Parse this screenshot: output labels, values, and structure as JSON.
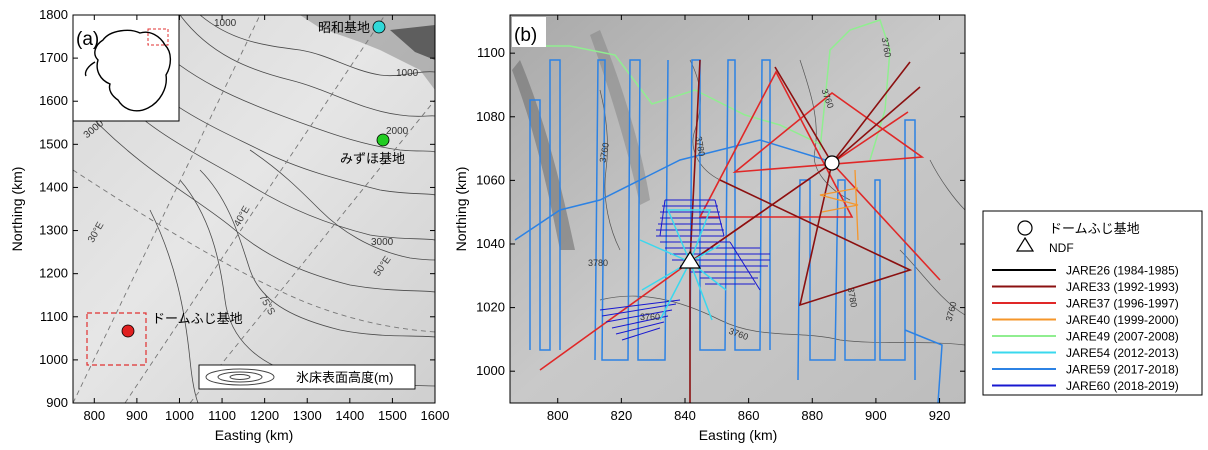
{
  "panel_a": {
    "label": "(a)",
    "xlabel": "Easting (km)",
    "ylabel": "Northing (km)",
    "xticks": [
      "800",
      "900",
      "1000",
      "1100",
      "1200",
      "1300",
      "1400",
      "1500",
      "1600"
    ],
    "yticks": [
      "900",
      "1000",
      "1100",
      "1200",
      "1300",
      "1400",
      "1500",
      "1600",
      "1700",
      "1800"
    ],
    "contour_labels": [
      "1000",
      "2000",
      "3000",
      "3000",
      "1000"
    ],
    "meridian_labels": [
      "30°E",
      "40°E",
      "50°E",
      "75°S"
    ],
    "stations": [
      {
        "name": "昭和基地",
        "color": "#30d8d8"
      },
      {
        "name": "みずほ基地",
        "color": "#22cc22"
      },
      {
        "name": "ドームふじ基地",
        "color": "#e02020"
      }
    ],
    "legend_text": "氷床表面高度(m)"
  },
  "panel_b": {
    "label": "(b)",
    "xlabel": "Easting (km)",
    "ylabel": "Northing (km)",
    "xticks": [
      "800",
      "820",
      "840",
      "860",
      "880",
      "900",
      "920"
    ],
    "yticks": [
      "1000",
      "1020",
      "1040",
      "1060",
      "1080",
      "1100"
    ],
    "contour_labels": [
      "3760",
      "3780",
      "3780",
      "3760",
      "3760",
      "3760",
      "3780",
      "3760",
      "3760"
    ]
  },
  "legend": {
    "symbols": [
      {
        "label": "ドームふじ基地",
        "icon": "circle"
      },
      {
        "label": "NDF",
        "icon": "triangle"
      }
    ],
    "entries": [
      {
        "label": "JARE26 (1984-1985)",
        "color": "#000000"
      },
      {
        "label": "JARE33 (1992-1993)",
        "color": "#8b1010"
      },
      {
        "label": "JARE37 (1996-1997)",
        "color": "#e02828"
      },
      {
        "label": "JARE40 (1999-2000)",
        "color": "#f5962a"
      },
      {
        "label": "JARE49 (2007-2008)",
        "color": "#90ee90"
      },
      {
        "label": "JARE54 (2012-2013)",
        "color": "#3ad8ee"
      },
      {
        "label": "JARE59 (2017-2018)",
        "color": "#2c82e4"
      },
      {
        "label": "JARE60 (2018-2019)",
        "color": "#1818d0"
      }
    ]
  }
}
